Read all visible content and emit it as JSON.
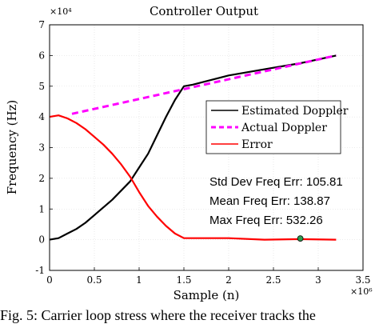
{
  "caption": "Fig. 5: Carrier loop stress where the receiver tracks the",
  "chart_data": {
    "type": "line",
    "title": "Controller Output",
    "xlabel": "Sample (n)",
    "ylabel": "Frequency (Hz)",
    "x_exponent": "×10⁶",
    "y_exponent": "×10⁴",
    "xlim": [
      0,
      3.5
    ],
    "ylim": [
      -1,
      7
    ],
    "xticks": [
      "0",
      "0.5",
      "1",
      "1.5",
      "2",
      "2.5",
      "3",
      "3.5"
    ],
    "yticks": [
      "-1",
      "0",
      "1",
      "2",
      "3",
      "4",
      "5",
      "6",
      "7"
    ],
    "grid": true,
    "legend_position": "right",
    "series": [
      {
        "name": "Estimated Doppler",
        "color": "#000000",
        "style": "solid",
        "x": [
          0,
          0.1,
          0.2,
          0.3,
          0.4,
          0.5,
          0.6,
          0.7,
          0.8,
          0.9,
          1.0,
          1.1,
          1.2,
          1.3,
          1.4,
          1.5,
          1.6,
          1.8,
          2.0,
          2.4,
          2.8,
          3.2
        ],
        "y": [
          0,
          0.05,
          0.2,
          0.35,
          0.55,
          0.8,
          1.05,
          1.3,
          1.6,
          1.9,
          2.35,
          2.8,
          3.4,
          4.0,
          4.55,
          5.0,
          5.05,
          5.2,
          5.35,
          5.55,
          5.75,
          6.0
        ]
      },
      {
        "name": "Actual Doppler",
        "color": "#ff00ff",
        "style": "dashed",
        "x": [
          0.25,
          3.2
        ],
        "y": [
          4.1,
          6.0
        ]
      },
      {
        "name": "Error",
        "color": "#ff0000",
        "style": "solid",
        "x": [
          0,
          0.1,
          0.2,
          0.3,
          0.4,
          0.5,
          0.6,
          0.7,
          0.8,
          0.9,
          1.0,
          1.1,
          1.2,
          1.3,
          1.4,
          1.5,
          1.6,
          1.8,
          2.0,
          2.4,
          2.8,
          3.2
        ],
        "y": [
          4.0,
          4.05,
          3.95,
          3.8,
          3.6,
          3.35,
          3.1,
          2.8,
          2.45,
          2.05,
          1.55,
          1.1,
          0.75,
          0.45,
          0.2,
          0.05,
          0.05,
          0.05,
          0.05,
          0.0,
          0.02,
          0.0
        ]
      }
    ],
    "marker": {
      "x": 2.8,
      "y": 0.04,
      "fill": "#2e9b4f"
    },
    "annotations": [
      "Std Dev Freq Err: 105.81",
      "Mean Freq Err: 138.87",
      "Max Freq Err: 532.26"
    ]
  }
}
